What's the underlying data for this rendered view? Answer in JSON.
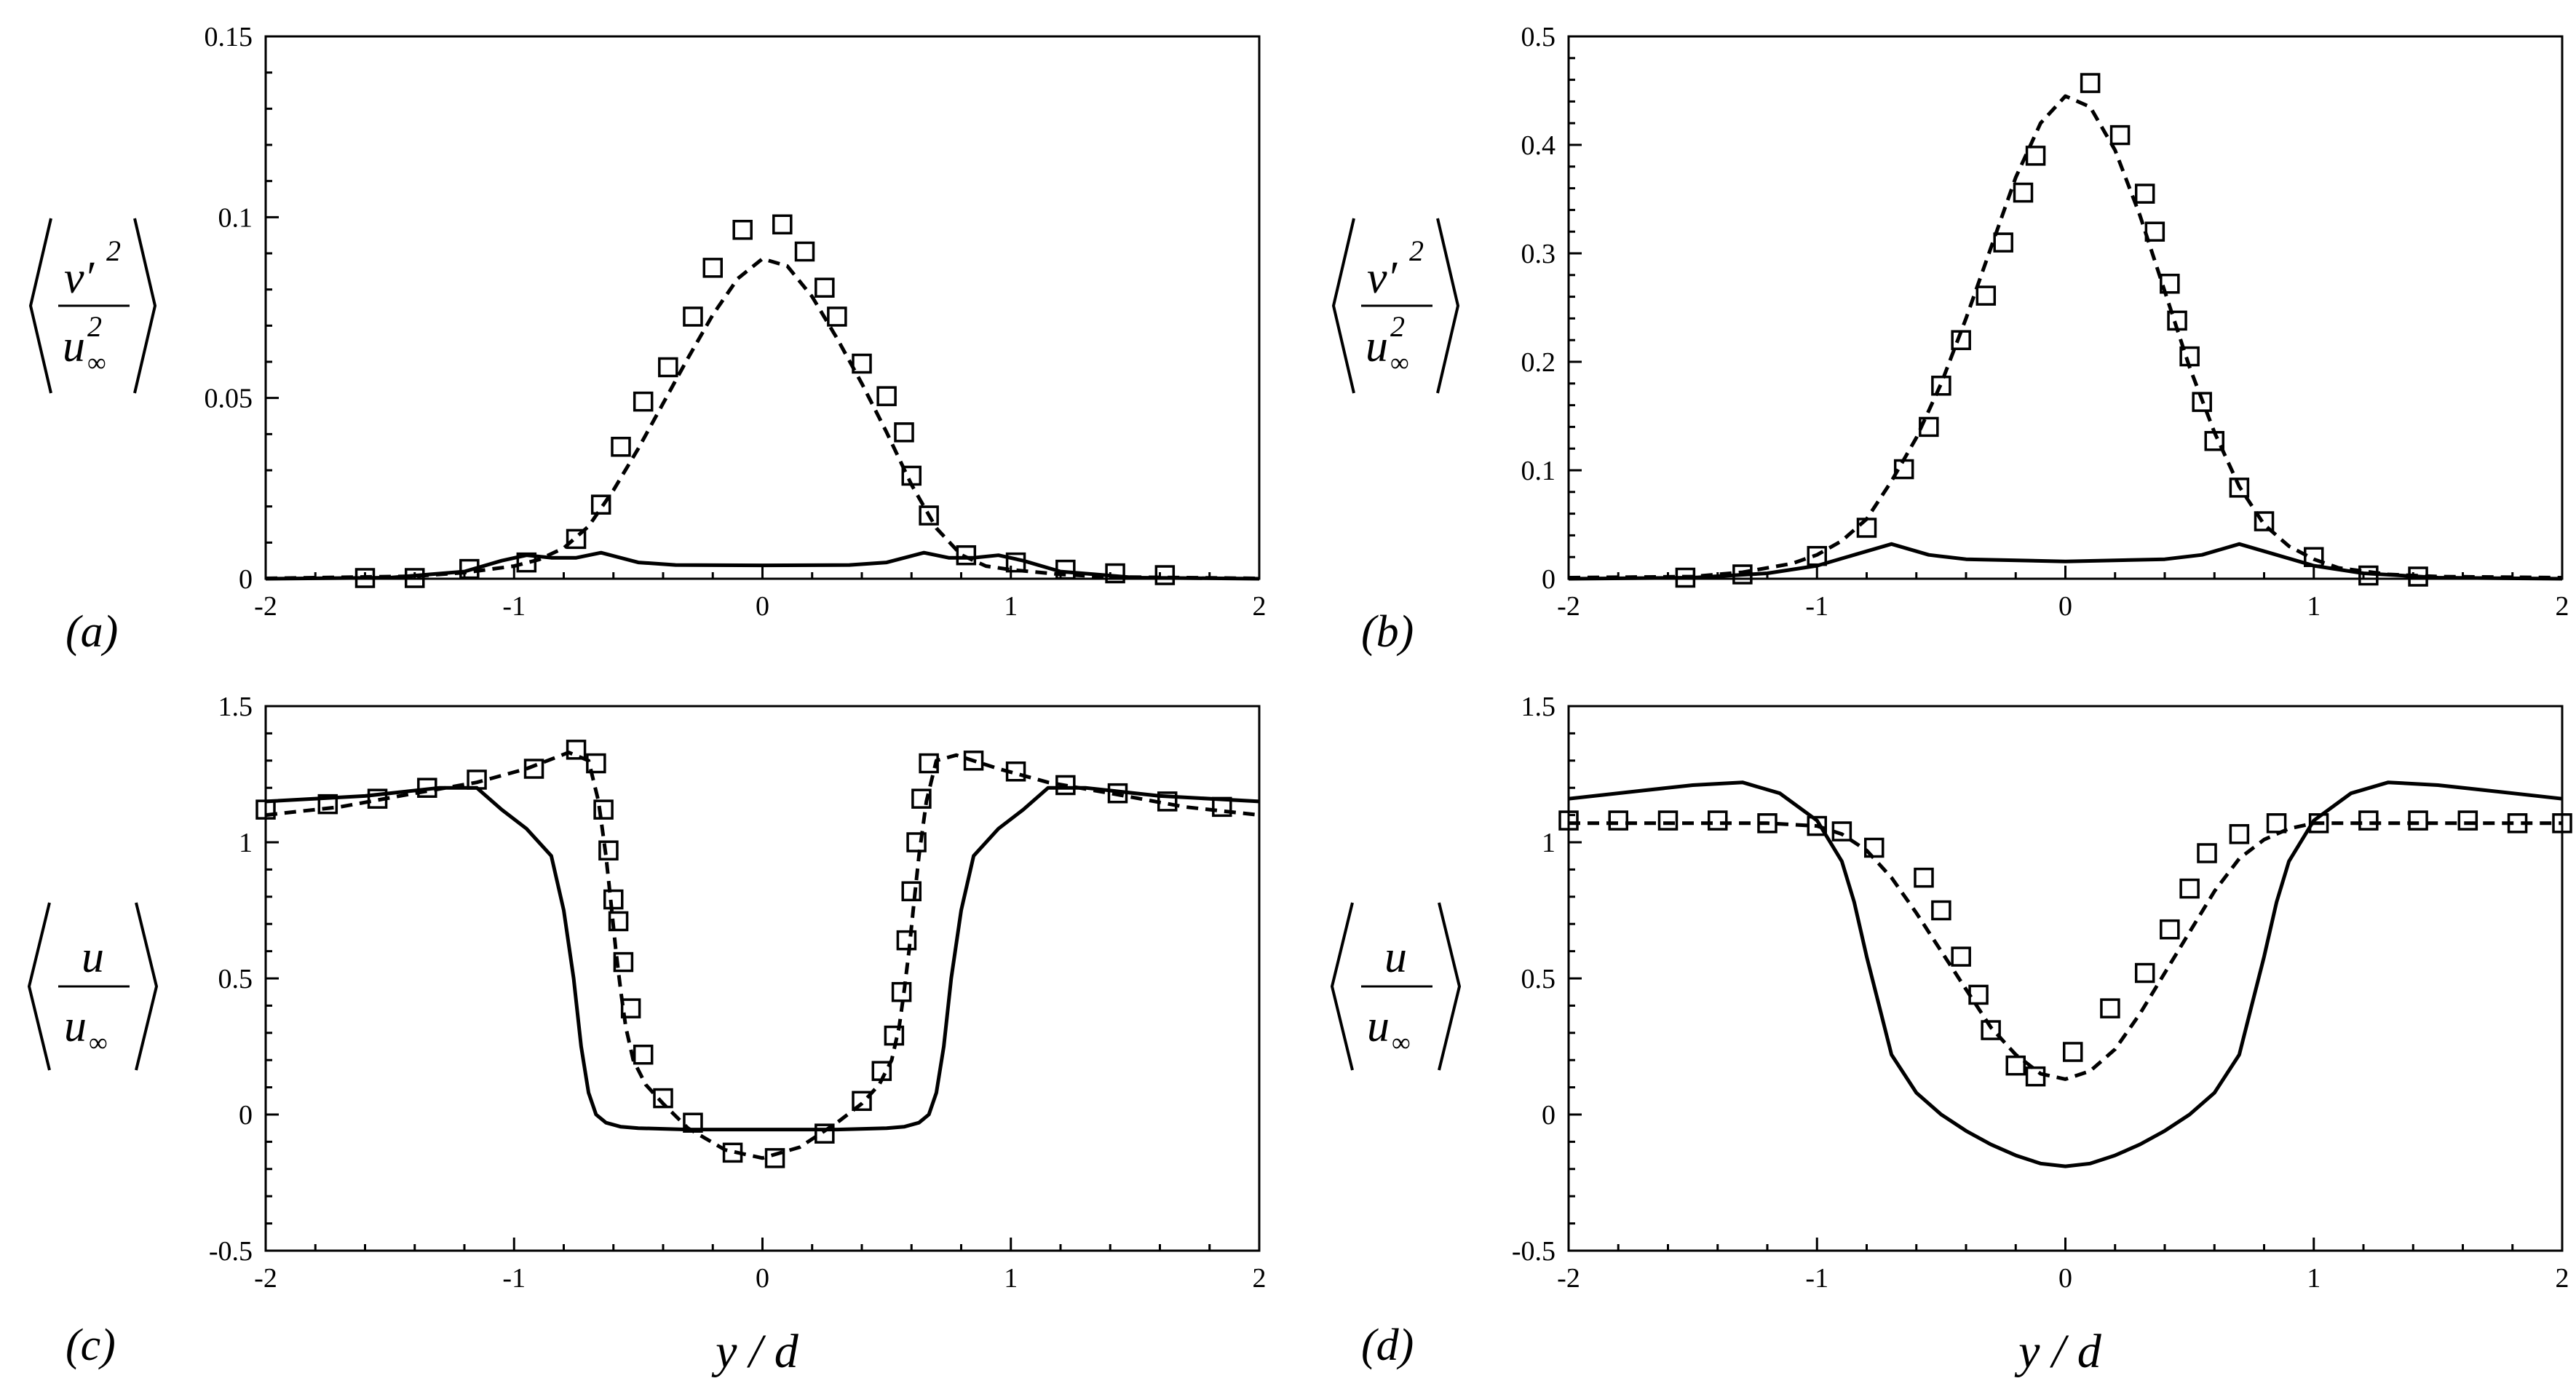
{
  "chart_data": [
    {
      "type": "line",
      "panel_label": "(a)",
      "ylabel": {
        "var": "v′",
        "sup": "2",
        "den_var": "u",
        "den_sub": "∞",
        "den_sup": "2"
      },
      "xlim": [
        -2,
        2
      ],
      "ylim": [
        0,
        0.15
      ],
      "xticks": [
        -2,
        -1,
        0,
        1,
        2
      ],
      "xtick_labels": [
        "-2",
        "-1",
        "0",
        "1",
        "2"
      ],
      "yticks": [
        0,
        0.05,
        0.1,
        0.15
      ],
      "ytick_labels": [
        "0",
        "0.05",
        "0.1",
        "0.15"
      ],
      "series": [
        {
          "name": "solid",
          "style": "solid",
          "x": [
            -2,
            -1.5,
            -1.2,
            -1.05,
            -0.95,
            -0.85,
            -0.75,
            -0.65,
            -0.5,
            -0.35,
            0,
            0.35,
            0.5,
            0.65,
            0.75,
            0.85,
            0.95,
            1.05,
            1.2,
            1.5,
            2
          ],
          "y": [
            0,
            0.0003,
            0.002,
            0.005,
            0.0065,
            0.0058,
            0.0058,
            0.0072,
            0.0045,
            0.0038,
            0.0037,
            0.0038,
            0.0045,
            0.0072,
            0.0058,
            0.0058,
            0.0065,
            0.005,
            0.002,
            0.0003,
            0
          ]
        },
        {
          "name": "dashed",
          "style": "dashed",
          "x": [
            -2,
            -1.4,
            -1.2,
            -1.0,
            -0.9,
            -0.8,
            -0.7,
            -0.6,
            -0.5,
            -0.4,
            -0.3,
            -0.2,
            -0.1,
            0,
            0.1,
            0.2,
            0.3,
            0.4,
            0.5,
            0.6,
            0.7,
            0.8,
            0.9,
            1.0,
            1.2,
            1.4,
            2
          ],
          "y": [
            0.0001,
            0.0007,
            0.0017,
            0.0035,
            0.0053,
            0.0085,
            0.0145,
            0.0245,
            0.036,
            0.0485,
            0.061,
            0.073,
            0.083,
            0.0885,
            0.0865,
            0.078,
            0.0665,
            0.054,
            0.0405,
            0.026,
            0.014,
            0.0066,
            0.0035,
            0.0025,
            0.0012,
            0.0005,
            0.0001
          ]
        },
        {
          "name": "squares",
          "style": "markers",
          "x": [
            -1.6,
            -1.4,
            -1.18,
            -0.95,
            -0.75,
            -0.65,
            -0.57,
            -0.48,
            -0.38,
            -0.28,
            -0.2,
            -0.08,
            0.08,
            0.17,
            0.25,
            0.3,
            0.4,
            0.5,
            0.57,
            0.6,
            0.67,
            0.82,
            1.02,
            1.22,
            1.42,
            1.62
          ],
          "y": [
            0.0002,
            0.0002,
            0.0027,
            0.0045,
            0.011,
            0.0205,
            0.0365,
            0.049,
            0.0585,
            0.0725,
            0.086,
            0.0965,
            0.098,
            0.0905,
            0.0805,
            0.0725,
            0.0595,
            0.0505,
            0.0405,
            0.0285,
            0.0175,
            0.0065,
            0.0045,
            0.0025,
            0.0015,
            0.001
          ]
        }
      ]
    },
    {
      "type": "line",
      "panel_label": "(b)",
      "ylabel": {
        "var": "v′",
        "sup": "2",
        "den_var": "u",
        "den_sub": "∞",
        "den_sup": "2"
      },
      "xlim": [
        -2,
        2
      ],
      "ylim": [
        0,
        0.5
      ],
      "xticks": [
        -2,
        -1,
        0,
        1,
        2
      ],
      "xtick_labels": [
        "-2",
        "-1",
        "0",
        "1",
        "2"
      ],
      "yticks": [
        0,
        0.1,
        0.2,
        0.3,
        0.4,
        0.5
      ],
      "ytick_labels": [
        "0",
        "0.1",
        "0.2",
        "0.3",
        "0.4",
        "0.5"
      ],
      "series": [
        {
          "name": "solid",
          "style": "solid",
          "x": [
            -2,
            -1.5,
            -1.2,
            -1.0,
            -0.85,
            -0.7,
            -0.55,
            -0.4,
            0,
            0.4,
            0.55,
            0.7,
            0.85,
            1.0,
            1.2,
            1.5,
            2
          ],
          "y": [
            0,
            0.001,
            0.005,
            0.012,
            0.022,
            0.032,
            0.022,
            0.018,
            0.016,
            0.018,
            0.022,
            0.032,
            0.022,
            0.012,
            0.005,
            0.001,
            0
          ]
        },
        {
          "name": "dashed",
          "style": "dashed",
          "x": [
            -2,
            -1.5,
            -1.3,
            -1.1,
            -1.0,
            -0.9,
            -0.8,
            -0.7,
            -0.6,
            -0.5,
            -0.4,
            -0.3,
            -0.2,
            -0.1,
            0,
            0.1,
            0.2,
            0.3,
            0.4,
            0.5,
            0.6,
            0.7,
            0.8,
            0.9,
            1.0,
            1.1,
            1.3,
            1.5,
            2
          ],
          "y": [
            0.001,
            0.002,
            0.006,
            0.014,
            0.022,
            0.035,
            0.055,
            0.09,
            0.13,
            0.18,
            0.24,
            0.305,
            0.37,
            0.42,
            0.445,
            0.435,
            0.395,
            0.335,
            0.265,
            0.195,
            0.135,
            0.085,
            0.05,
            0.03,
            0.018,
            0.01,
            0.004,
            0.002,
            0.001
          ]
        },
        {
          "name": "squares",
          "style": "markers",
          "x": [
            -1.53,
            -1.3,
            -1.0,
            -0.8,
            -0.65,
            -0.55,
            -0.5,
            -0.42,
            -0.32,
            -0.25,
            -0.17,
            -0.12,
            0.1,
            0.22,
            0.32,
            0.36,
            0.42,
            0.45,
            0.5,
            0.55,
            0.6,
            0.7,
            0.8,
            1.0,
            1.22,
            1.42
          ],
          "y": [
            0.001,
            0.004,
            0.021,
            0.047,
            0.101,
            0.14,
            0.178,
            0.22,
            0.261,
            0.31,
            0.356,
            0.39,
            0.457,
            0.409,
            0.355,
            0.32,
            0.272,
            0.238,
            0.205,
            0.163,
            0.127,
            0.084,
            0.053,
            0.02,
            0.003,
            0.002
          ]
        }
      ]
    },
    {
      "type": "line",
      "panel_label": "(c)",
      "ylabel": {
        "var": "u",
        "den_var": "u",
        "den_sub": "∞"
      },
      "xlabel": "y / d",
      "xlim": [
        -2,
        2
      ],
      "ylim": [
        -0.5,
        1.5
      ],
      "xticks": [
        -2,
        -1,
        0,
        1,
        2
      ],
      "xtick_labels": [
        "-2",
        "-1",
        "0",
        "1",
        "2"
      ],
      "yticks": [
        -0.5,
        0,
        0.5,
        1,
        1.5
      ],
      "ytick_labels": [
        "-0.5",
        "0",
        "0.5",
        "1",
        "1.5"
      ],
      "series": [
        {
          "name": "solid",
          "style": "solid",
          "x": [
            -2,
            -1.6,
            -1.3,
            -1.15,
            -1.05,
            -0.95,
            -0.85,
            -0.8,
            -0.76,
            -0.73,
            -0.7,
            -0.67,
            -0.63,
            -0.57,
            -0.5,
            -0.3,
            0,
            0.3,
            0.5,
            0.57,
            0.63,
            0.67,
            0.7,
            0.73,
            0.76,
            0.8,
            0.85,
            0.95,
            1.05,
            1.15,
            1.3,
            1.6,
            2
          ],
          "y": [
            1.15,
            1.17,
            1.2,
            1.2,
            1.12,
            1.05,
            0.95,
            0.75,
            0.5,
            0.25,
            0.08,
            0.0,
            -0.03,
            -0.045,
            -0.05,
            -0.055,
            -0.055,
            -0.055,
            -0.05,
            -0.045,
            -0.03,
            0.0,
            0.08,
            0.25,
            0.5,
            0.75,
            0.95,
            1.05,
            1.12,
            1.2,
            1.2,
            1.17,
            1.15
          ]
        },
        {
          "name": "dashed",
          "style": "dashed",
          "x": [
            -2,
            -1.7,
            -1.4,
            -1.15,
            -0.95,
            -0.78,
            -0.7,
            -0.66,
            -0.63,
            -0.61,
            -0.59,
            -0.57,
            -0.55,
            -0.52,
            -0.47,
            -0.4,
            -0.3,
            -0.15,
            0,
            0.15,
            0.3,
            0.4,
            0.47,
            0.52,
            0.55,
            0.57,
            0.59,
            0.61,
            0.63,
            0.66,
            0.7,
            0.78,
            0.95,
            1.15,
            1.4,
            1.7,
            2
          ],
          "y": [
            1.1,
            1.13,
            1.18,
            1.22,
            1.27,
            1.33,
            1.3,
            1.15,
            0.95,
            0.78,
            0.6,
            0.45,
            0.32,
            0.2,
            0.11,
            0.04,
            -0.05,
            -0.13,
            -0.16,
            -0.12,
            -0.03,
            0.04,
            0.11,
            0.2,
            0.32,
            0.45,
            0.6,
            0.78,
            0.95,
            1.15,
            1.3,
            1.32,
            1.27,
            1.22,
            1.18,
            1.13,
            1.1
          ]
        },
        {
          "name": "squares",
          "style": "markers",
          "x": [
            -2,
            -1.75,
            -1.55,
            -1.35,
            -1.15,
            -0.92,
            -0.75,
            -0.67,
            -0.64,
            -0.62,
            -0.6,
            -0.58,
            -0.56,
            -0.53,
            -0.48,
            -0.4,
            -0.28,
            -0.12,
            0.05,
            0.25,
            0.4,
            0.48,
            0.53,
            0.56,
            0.58,
            0.6,
            0.62,
            0.64,
            0.67,
            0.85,
            1.02,
            1.22,
            1.43,
            1.63,
            1.85
          ],
          "y": [
            1.12,
            1.14,
            1.16,
            1.2,
            1.23,
            1.27,
            1.34,
            1.29,
            1.12,
            0.97,
            0.79,
            0.71,
            0.56,
            0.39,
            0.22,
            0.06,
            -0.03,
            -0.14,
            -0.16,
            -0.07,
            0.05,
            0.16,
            0.29,
            0.45,
            0.64,
            0.82,
            1.0,
            1.16,
            1.29,
            1.3,
            1.26,
            1.21,
            1.18,
            1.15,
            1.13
          ]
        }
      ]
    },
    {
      "type": "line",
      "panel_label": "(d)",
      "ylabel": {
        "var": "u",
        "den_var": "u",
        "den_sub": "∞"
      },
      "xlabel": "y / d",
      "xlim": [
        -2,
        2
      ],
      "ylim": [
        -0.5,
        1.5
      ],
      "xticks": [
        -2,
        -1,
        0,
        1,
        2
      ],
      "xtick_labels": [
        "-2",
        "-1",
        "0",
        "1",
        "2"
      ],
      "yticks": [
        -0.5,
        0,
        0.5,
        1,
        1.5
      ],
      "ytick_labels": [
        "-0.5",
        "0",
        "0.5",
        "1",
        "1.5"
      ],
      "series": [
        {
          "name": "solid",
          "style": "solid",
          "x": [
            -2,
            -1.7,
            -1.5,
            -1.3,
            -1.15,
            -1.0,
            -0.9,
            -0.85,
            -0.8,
            -0.75,
            -0.7,
            -0.6,
            -0.5,
            -0.4,
            -0.3,
            -0.2,
            -0.1,
            0,
            0.1,
            0.2,
            0.3,
            0.4,
            0.5,
            0.6,
            0.7,
            0.75,
            0.8,
            0.85,
            0.9,
            1.0,
            1.15,
            1.3,
            1.5,
            1.7,
            2
          ],
          "y": [
            1.16,
            1.19,
            1.21,
            1.22,
            1.18,
            1.08,
            0.93,
            0.78,
            0.58,
            0.4,
            0.22,
            0.08,
            0.0,
            -0.06,
            -0.11,
            -0.15,
            -0.18,
            -0.19,
            -0.18,
            -0.15,
            -0.11,
            -0.06,
            0.0,
            0.08,
            0.22,
            0.4,
            0.58,
            0.78,
            0.93,
            1.08,
            1.18,
            1.22,
            1.21,
            1.19,
            1.16
          ]
        },
        {
          "name": "dashed",
          "style": "dashed",
          "x": [
            -2,
            -1.5,
            -1.2,
            -1.0,
            -0.9,
            -0.8,
            -0.7,
            -0.6,
            -0.5,
            -0.4,
            -0.3,
            -0.2,
            -0.1,
            0,
            0.1,
            0.2,
            0.3,
            0.4,
            0.5,
            0.6,
            0.7,
            0.8,
            0.9,
            1.0,
            1.2,
            1.5,
            2
          ],
          "y": [
            1.07,
            1.07,
            1.07,
            1.06,
            1.03,
            0.97,
            0.87,
            0.74,
            0.6,
            0.46,
            0.32,
            0.22,
            0.15,
            0.13,
            0.16,
            0.24,
            0.37,
            0.52,
            0.67,
            0.82,
            0.94,
            1.01,
            1.05,
            1.07,
            1.07,
            1.07,
            1.07
          ]
        },
        {
          "name": "squares",
          "style": "markers",
          "x": [
            -2,
            -1.8,
            -1.6,
            -1.4,
            -1.2,
            -1.0,
            -0.9,
            -0.77,
            -0.57,
            -0.5,
            -0.42,
            -0.35,
            -0.3,
            -0.2,
            -0.12,
            0.03,
            0.18,
            0.32,
            0.42,
            0.5,
            0.57,
            0.7,
            0.85,
            1.02,
            1.22,
            1.42,
            1.62,
            1.82,
            2
          ],
          "y": [
            1.08,
            1.08,
            1.08,
            1.08,
            1.07,
            1.06,
            1.04,
            0.98,
            0.87,
            0.75,
            0.58,
            0.44,
            0.31,
            0.18,
            0.14,
            0.23,
            0.39,
            0.52,
            0.68,
            0.83,
            0.96,
            1.03,
            1.07,
            1.07,
            1.08,
            1.08,
            1.08,
            1.07,
            1.07
          ]
        }
      ]
    }
  ]
}
